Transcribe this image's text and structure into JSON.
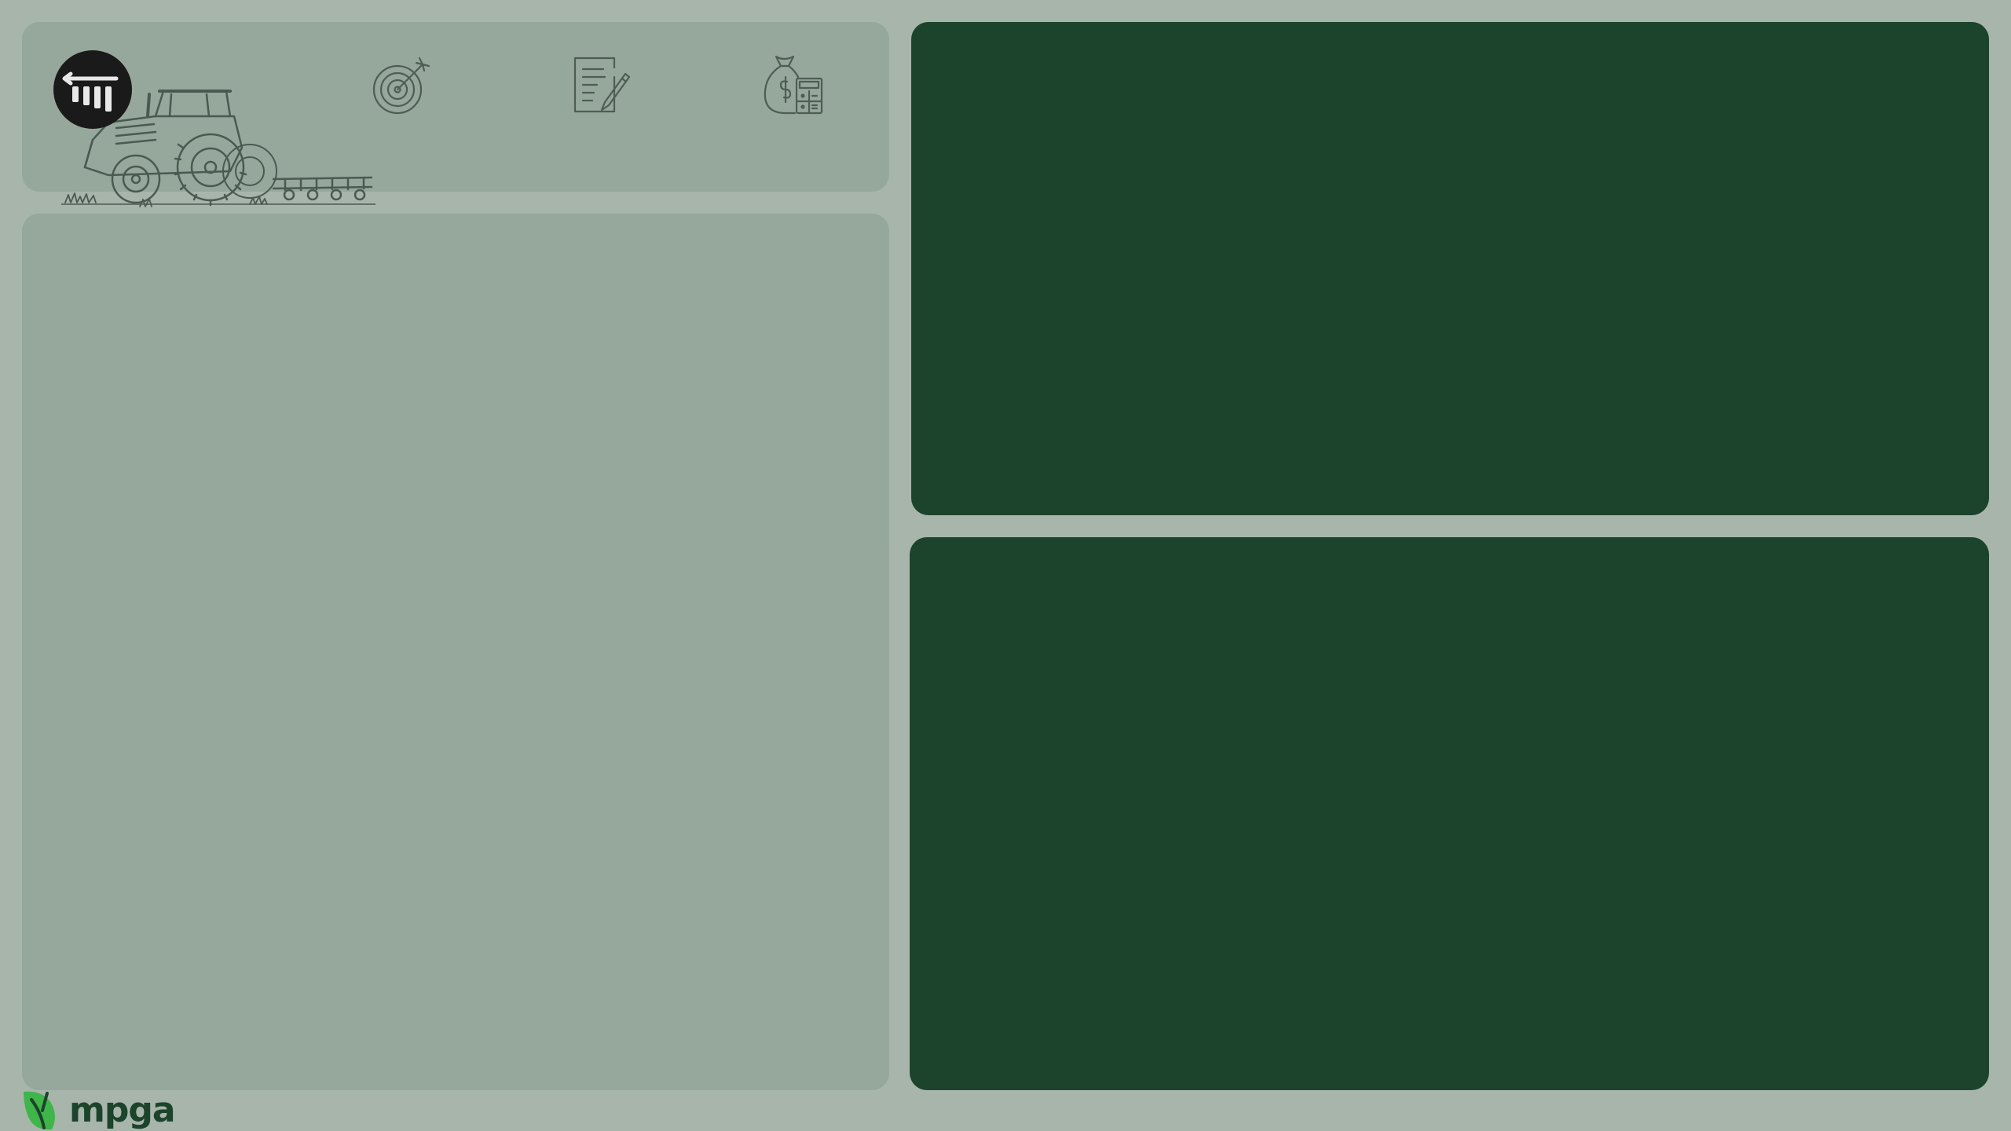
{
  "header": {
    "back_button": {
      "icon": "back-arrow-bars-icon"
    },
    "illustration": {
      "icon": "tractor-illustration"
    },
    "nav_icons": [
      {
        "icon": "target-icon"
      },
      {
        "icon": "document-edit-icon"
      },
      {
        "icon": "money-bag-calculator-icon"
      }
    ]
  },
  "brand": {
    "logo_text": "mpga",
    "logo_icon": "leaf-logo-icon"
  },
  "colors": {
    "background": "#a8b5ab",
    "light_panel": "#95a89b",
    "dark_panel": "#1c432b",
    "logo_green": "#3fb54a"
  }
}
